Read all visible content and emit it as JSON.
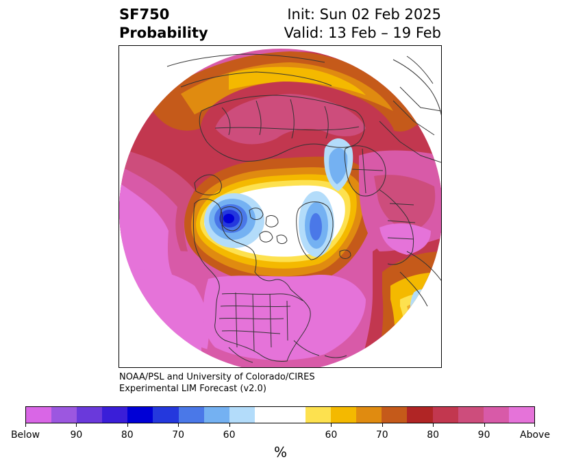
{
  "title": {
    "left_line1": "SF750",
    "left_line2": "Probability",
    "right_line1": "Init: Sun 02 Feb 2025",
    "right_line2": "Valid: 13 Feb – 19 Feb"
  },
  "credit": {
    "line1": "NOAA/PSL and University of Colorado/CIRES",
    "line2": "Experimental LIM Forecast (v2.0)"
  },
  "colorbar": {
    "colors": [
      "#d966e6",
      "#9c57e0",
      "#6a39db",
      "#3a1ed8",
      "#0000d6",
      "#2438dd",
      "#4a78e8",
      "#74b1f2",
      "#b3dcfa",
      "#ffffff",
      "#ffffff",
      "#fde14f",
      "#f4b900",
      "#e08b10",
      "#c55a1a",
      "#b02525",
      "#c2374f",
      "#cd4d7c",
      "#d85aa8",
      "#e573d9"
    ],
    "tick_labels": [
      "Below",
      "90",
      "80",
      "70",
      "60",
      "60",
      "70",
      "80",
      "90",
      "Above"
    ],
    "unit": "%"
  },
  "map": {
    "projection": "north-polar-stereographic",
    "field_palette": {
      "above_high": "#e573d9",
      "above_90": "#d85aa8",
      "above_80": "#c2374f",
      "above_75": "#b02525",
      "above_70": "#c55a1a",
      "above_65": "#e08b10",
      "above_60": "#f4b900",
      "above_55": "#fde14f",
      "neutral": "#ffffff",
      "below_60": "#b3dcfa",
      "below_65": "#74b1f2",
      "below_70": "#4a78e8",
      "below_75": "#2438dd",
      "below_80": "#0000d6"
    },
    "coastline_color": "#333333"
  }
}
